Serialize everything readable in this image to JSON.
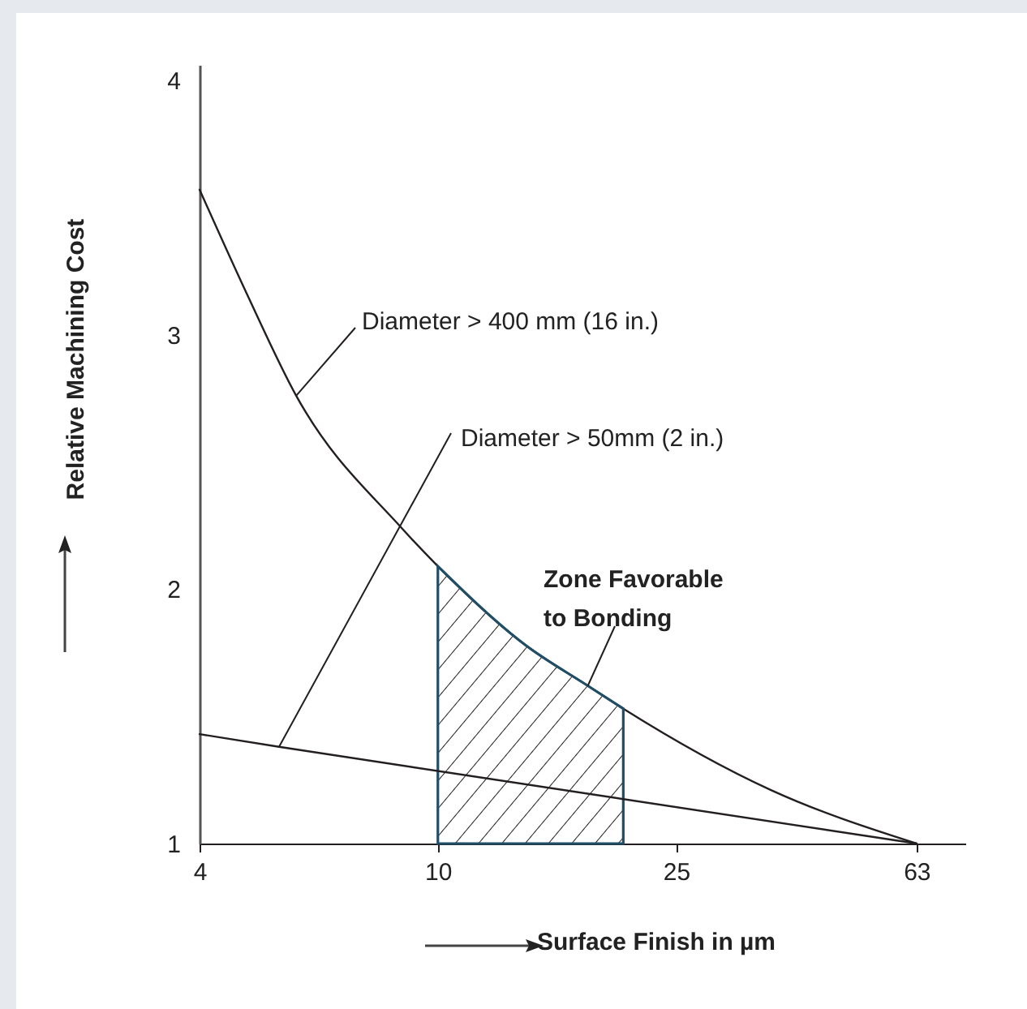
{
  "chart_data": {
    "type": "line",
    "xlabel": "Surface Finish in µm",
    "ylabel": "Relative Machining Cost",
    "log": "x",
    "xlim": [
      4,
      76
    ],
    "xticks": [
      4,
      10,
      25,
      63
    ],
    "ylim": [
      1,
      4.06
    ],
    "yticks": [
      1,
      2,
      3,
      4
    ],
    "series": [
      {
        "color": "#231f20",
        "x": [
          4,
          4.82,
          5.8,
          8.7,
          10,
          14,
          17.8,
          20.4,
          36,
          63
        ],
        "values": [
          3.57,
          3.15,
          2.76,
          2.24,
          2.09,
          1.78,
          1.62,
          1.53,
          1.21,
          1
        ]
      },
      {
        "color": "#231f20",
        "x": [
          4,
          5.43,
          63
        ],
        "values": [
          1.43,
          1.38,
          1
        ]
      },
      {
        "type": "area",
        "color": "#1f4e66",
        "x": [
          10,
          14,
          17.8,
          20.4
        ],
        "values": [
          2.09,
          1.78,
          1.62,
          1.53
        ]
      }
    ],
    "annotations": [
      {
        "text": "Diameter > 400 mm (16 in.)",
        "x": 5.8,
        "y": 2.76
      },
      {
        "text": "Diameter > 50mm (2 in.)",
        "x": 5.43,
        "y": 1.38
      },
      {
        "text": "Zone Favorable to Bonding",
        "x": 17.8,
        "y": 1.62
      }
    ]
  }
}
